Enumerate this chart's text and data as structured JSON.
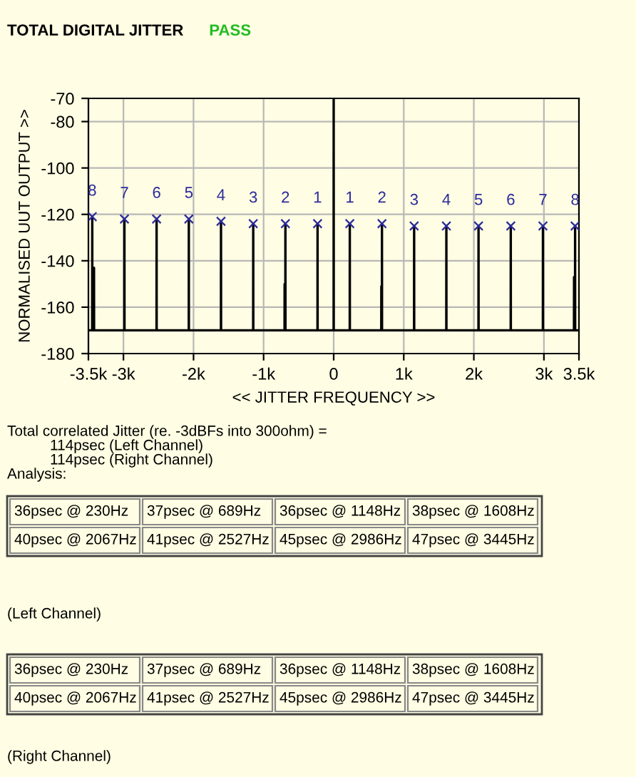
{
  "chart_data": {
    "type": "line",
    "title": "TOTAL DIGITAL JITTER",
    "subtitle": "PASS",
    "xlabel": "<< JITTER FREQUENCY >>",
    "ylabel": "NORMALISED UUT OUTPUT >>",
    "xlim": [
      -3500,
      3500
    ],
    "ylim": [
      -180,
      -70
    ],
    "xticks": [
      {
        "value": -3500,
        "label": "-3.5k"
      },
      {
        "value": -3000,
        "label": "-3k"
      },
      {
        "value": -2000,
        "label": "-2k"
      },
      {
        "value": -1000,
        "label": "-1k"
      },
      0,
      {
        "value": 1000,
        "label": "1k"
      },
      {
        "value": 2000,
        "label": "2k"
      },
      {
        "value": 3000,
        "label": "3k"
      },
      {
        "value": 3500,
        "label": "3.5k"
      }
    ],
    "yticks": [
      -70,
      -80,
      -100,
      -120,
      -140,
      -160,
      -180
    ],
    "grid": true,
    "legend": false,
    "series": [
      {
        "color": "#000000",
        "marker": "none",
        "x": [
          -3500,
          -3446,
          -3445,
          -3444,
          -3421,
          -3420,
          -3419,
          -2987,
          -2986,
          -2985,
          -2528,
          -2527,
          -2526,
          -2068,
          -2067,
          -2066,
          -1609,
          -1608,
          -1607,
          -1149,
          -1148,
          -1147,
          -701,
          -700,
          -699,
          -690,
          -689,
          -688,
          -231,
          -230,
          -229,
          -1,
          0,
          1,
          229,
          230,
          231,
          679,
          680,
          681,
          688,
          689,
          690,
          1147,
          1148,
          1149,
          1607,
          1608,
          1609,
          2066,
          2067,
          2068,
          2526,
          2527,
          2528,
          2985,
          2986,
          2987,
          3429,
          3430,
          3431,
          3444,
          3445,
          3446,
          3500
        ],
        "values": [
          -170,
          -170,
          -121,
          -170,
          -170,
          -143,
          -170,
          -170,
          -122,
          -170,
          -170,
          -122,
          -170,
          -170,
          -122,
          -170,
          -170,
          -123,
          -170,
          -170,
          -124,
          -170,
          -170,
          -150,
          -170,
          -170,
          -124,
          -170,
          -170,
          -124,
          -170,
          -170,
          -70,
          -170,
          -170,
          -124,
          -170,
          -170,
          -151,
          -170,
          -170,
          -124,
          -170,
          -170,
          -125,
          -170,
          -170,
          -125,
          -170,
          -170,
          -125,
          -170,
          -170,
          -125,
          -170,
          -170,
          -125,
          -170,
          -170,
          -147,
          -170,
          -170,
          -125,
          -170,
          -170
        ]
      },
      {
        "type": "scatter",
        "color": "#2b2b9b",
        "marker": "cross",
        "x": [
          -3445,
          -2986,
          -2527,
          -2067,
          -1608,
          -1148,
          -689,
          -230,
          230,
          689,
          1148,
          1608,
          2067,
          2527,
          2986,
          3445
        ],
        "values": [
          -121,
          -122,
          -122,
          -122,
          -123,
          -124,
          -124,
          -124,
          -124,
          -124,
          -125,
          -125,
          -125,
          -125,
          -125,
          -125
        ]
      }
    ],
    "annotations": [
      {
        "text": "8",
        "x": -3445,
        "y": -121
      },
      {
        "text": "7",
        "x": -2986,
        "y": -122
      },
      {
        "text": "6",
        "x": -2527,
        "y": -122
      },
      {
        "text": "5",
        "x": -2067,
        "y": -122
      },
      {
        "text": "4",
        "x": -1608,
        "y": -123
      },
      {
        "text": "3",
        "x": -1148,
        "y": -124
      },
      {
        "text": "2",
        "x": -689,
        "y": -124
      },
      {
        "text": "1",
        "x": -230,
        "y": -124
      },
      {
        "text": "1",
        "x": 230,
        "y": -124
      },
      {
        "text": "2",
        "x": 689,
        "y": -124
      },
      {
        "text": "3",
        "x": 1148,
        "y": -125
      },
      {
        "text": "4",
        "x": 1608,
        "y": -125
      },
      {
        "text": "5",
        "x": 2067,
        "y": -125
      },
      {
        "text": "6",
        "x": 2527,
        "y": -125
      },
      {
        "text": "7",
        "x": 2986,
        "y": -125
      },
      {
        "text": "8",
        "x": 3445,
        "y": -125
      },
      "Total correlated Jitter (re. -3dBFs into 300ohm) =",
      "114psec (Left Channel)",
      "114psec (Right Channel)",
      "Analysis:",
      "36psec @ 230Hz",
      "37psec @ 689Hz",
      "36psec @ 1148Hz",
      "38psec @ 1608Hz",
      "40psec @ 2067Hz",
      "41psec @ 2527Hz",
      "45psec @ 2986Hz",
      "47psec @ 3445Hz",
      "(Left Channel)",
      "36psec @ 230Hz",
      "37psec @ 689Hz",
      "36psec @ 1148Hz",
      "38psec @ 1608Hz",
      "40psec @ 2067Hz",
      "41psec @ 2527Hz",
      "45psec @ 2986Hz",
      "47psec @ 3445Hz",
      "(Right Channel)"
    ]
  }
}
